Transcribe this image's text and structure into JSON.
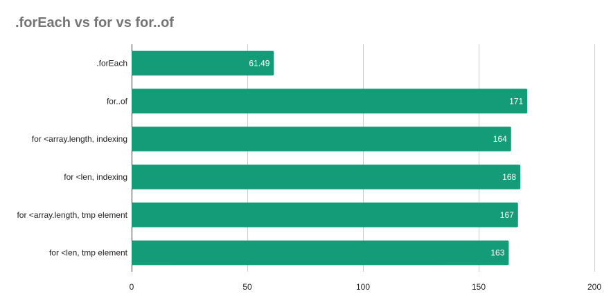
{
  "chart_data": {
    "type": "bar",
    "orientation": "horizontal",
    "title": ".forEach vs for vs for..of",
    "xlabel": "",
    "ylabel": "",
    "categories": [
      ".forEach",
      "for..of",
      "for <array.length, indexing",
      "for <len, indexing",
      "for <array.length, tmp element",
      "for <len, tmp element"
    ],
    "values": [
      61.49,
      171,
      164,
      168,
      167,
      163
    ],
    "value_labels": [
      "61.49",
      "171",
      "164",
      "168",
      "167",
      "163"
    ],
    "xlim": [
      0,
      200
    ],
    "x_ticks": [
      0,
      50,
      100,
      150,
      200
    ],
    "x_tick_labels": [
      "0",
      "50",
      "100",
      "150",
      "200"
    ],
    "grid": true,
    "legend": "none",
    "bar_color": "#149b77"
  }
}
